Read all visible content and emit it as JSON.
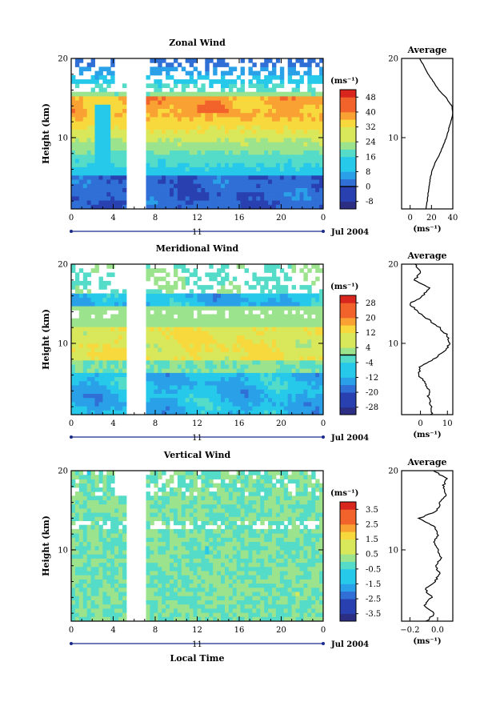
{
  "chart_data": [
    {
      "type": "heatmap",
      "title": "Zonal Wind",
      "ylabel": "Height (km)",
      "ylim": [
        1,
        20
      ],
      "y_ticks": [
        "10",
        "20"
      ],
      "x_ticks": [
        "0",
        "4",
        "8",
        "12",
        "16",
        "20",
        "0"
      ],
      "xlim": [
        0,
        24
      ],
      "date_label": "Jul 2004",
      "day_label": "11",
      "colorbar": {
        "unit": "(ms⁻¹)",
        "levels": [
          "-8",
          "0",
          "8",
          "16",
          "24",
          "32",
          "40",
          "48"
        ],
        "range": [
          -12,
          52
        ],
        "zero_line": 0
      },
      "average": {
        "title": "Average",
        "xlabel": "(ms⁻¹)",
        "x_ticks": [
          "0",
          "20",
          "40"
        ],
        "xlim": [
          -8,
          40
        ],
        "profile": [
          [
            15,
            1
          ],
          [
            16,
            2
          ],
          [
            17,
            3
          ],
          [
            18,
            4
          ],
          [
            19,
            5
          ],
          [
            21,
            6
          ],
          [
            24,
            7
          ],
          [
            28,
            8
          ],
          [
            31,
            9
          ],
          [
            34,
            10
          ],
          [
            36,
            11
          ],
          [
            38,
            12
          ],
          [
            40,
            13
          ],
          [
            39,
            14
          ],
          [
            34,
            15
          ],
          [
            27,
            16
          ],
          [
            22,
            17
          ],
          [
            17,
            18
          ],
          [
            13,
            19
          ],
          [
            9,
            20
          ]
        ]
      },
      "gap": [
        5.2,
        7.3
      ]
    },
    {
      "type": "heatmap",
      "title": "Meridional Wind",
      "ylabel": "Height (km)",
      "ylim": [
        1,
        20
      ],
      "y_ticks": [
        "10",
        "20"
      ],
      "x_ticks": [
        "0",
        "4",
        "8",
        "12",
        "16",
        "20",
        "0"
      ],
      "xlim": [
        0,
        24
      ],
      "date_label": "Jul 2004",
      "day_label": "11",
      "colorbar": {
        "unit": "(ms⁻¹)",
        "levels": [
          "-28",
          "-20",
          "-12",
          "-4",
          "4",
          "12",
          "20",
          "28"
        ],
        "range": [
          -32,
          32
        ],
        "zero_line": 0
      },
      "average": {
        "title": "Average",
        "xlabel": "(ms⁻¹)",
        "x_ticks": [
          "0",
          "10"
        ],
        "xlim": [
          -7,
          12
        ],
        "profile": [
          [
            4,
            1
          ],
          [
            4,
            2
          ],
          [
            3,
            3
          ],
          [
            3,
            4
          ],
          [
            2,
            5
          ],
          [
            -1,
            6
          ],
          [
            0,
            7
          ],
          [
            5,
            8
          ],
          [
            9,
            9
          ],
          [
            11,
            10
          ],
          [
            10,
            11
          ],
          [
            7,
            12
          ],
          [
            3,
            13
          ],
          [
            -1,
            14
          ],
          [
            -4,
            15
          ],
          [
            1,
            16
          ],
          [
            3,
            17
          ],
          [
            -2,
            18
          ],
          [
            0,
            19
          ],
          [
            -2,
            20
          ]
        ]
      },
      "gap": [
        5.2,
        7.3
      ]
    },
    {
      "type": "heatmap",
      "title": "Vertical Wind",
      "ylabel": "Height (km)",
      "xlabel": "Local Time",
      "ylim": [
        1,
        20
      ],
      "y_ticks": [
        "10",
        "20"
      ],
      "x_ticks": [
        "0",
        "4",
        "8",
        "12",
        "16",
        "20",
        "0"
      ],
      "xlim": [
        0,
        24
      ],
      "date_label": "Jul 2004",
      "day_label": "11",
      "colorbar": {
        "unit": "(ms⁻¹)",
        "levels": [
          "-3.5",
          "-2.5",
          "-1.5",
          "-0.5",
          "0.5",
          "1.5",
          "2.5",
          "3.5"
        ],
        "range": [
          -4,
          4
        ]
      },
      "average": {
        "title": "Average",
        "xlabel": "(ms⁻¹)",
        "x_ticks": [
          "−0.2",
          "0.0"
        ],
        "xlim": [
          -0.26,
          0.11
        ],
        "profile": [
          [
            -0.08,
            1
          ],
          [
            -0.02,
            2
          ],
          [
            -0.1,
            3
          ],
          [
            -0.04,
            4
          ],
          [
            -0.09,
            5
          ],
          [
            -0.02,
            6
          ],
          [
            0.01,
            7
          ],
          [
            -0.01,
            8
          ],
          [
            0.02,
            9
          ],
          [
            0.01,
            10
          ],
          [
            -0.02,
            11
          ],
          [
            0.0,
            12
          ],
          [
            -0.03,
            13
          ],
          [
            -0.13,
            14
          ],
          [
            0.0,
            15
          ],
          [
            0.02,
            16
          ],
          [
            0.06,
            17
          ],
          [
            0.04,
            18
          ],
          [
            0.07,
            19
          ],
          [
            -0.03,
            20
          ]
        ]
      },
      "gap": [
        5.2,
        7.3
      ]
    }
  ]
}
